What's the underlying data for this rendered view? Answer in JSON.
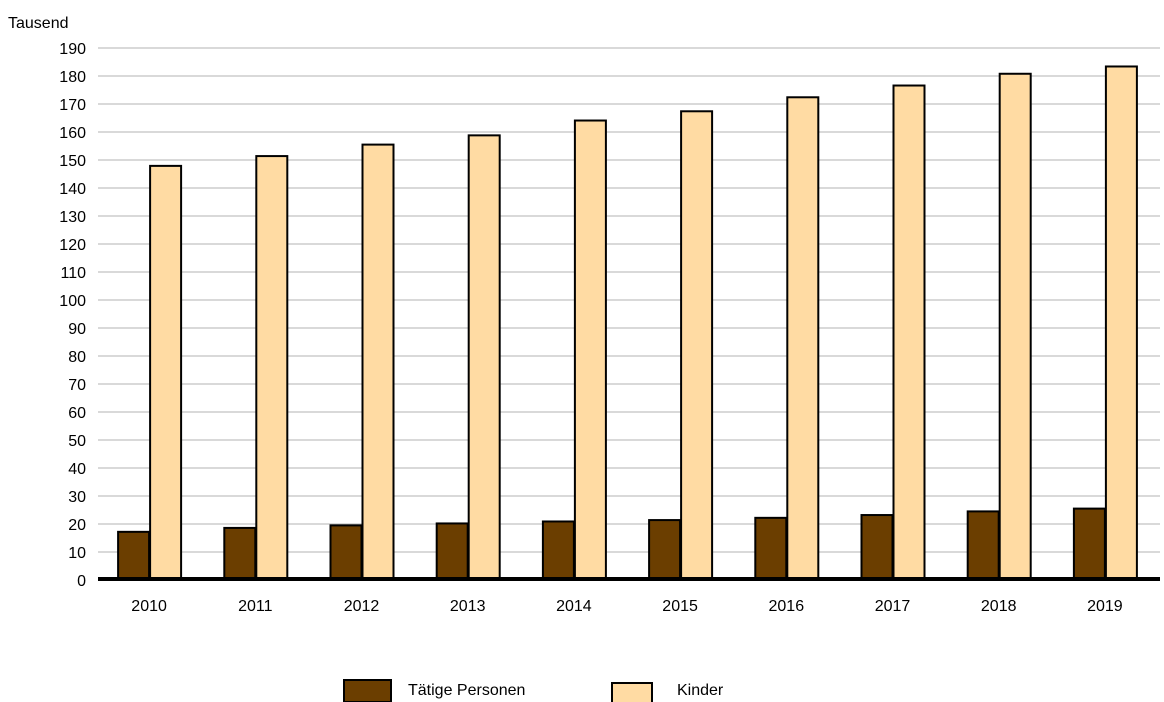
{
  "chart_data": {
    "type": "bar",
    "title": "",
    "xlabel": "",
    "ylabel": "Tausend",
    "ylim": [
      0,
      190
    ],
    "ytick_step": 10,
    "grid": true,
    "legend_position": "bottom",
    "categories": [
      "2010",
      "2011",
      "2012",
      "2013",
      "2014",
      "2015",
      "2016",
      "2017",
      "2018",
      "2019"
    ],
    "series": [
      {
        "name": "Tätige Personen",
        "color": "#6b3e00",
        "values": [
          17.2,
          18.6,
          19.5,
          20.2,
          20.9,
          21.4,
          22.2,
          23.2,
          24.5,
          25.5
        ]
      },
      {
        "name": "Kinder",
        "color": "#ffdba3",
        "values": [
          147.9,
          151.4,
          155.5,
          158.8,
          164.1,
          167.4,
          172.4,
          176.6,
          180.8,
          183.4
        ]
      }
    ]
  }
}
